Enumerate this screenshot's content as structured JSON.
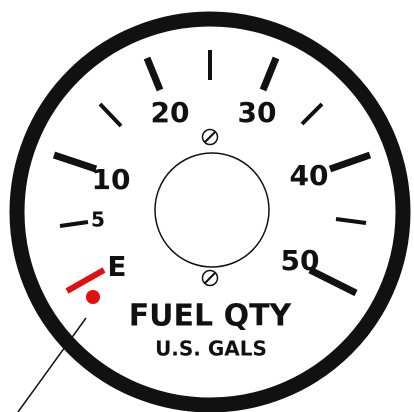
{
  "dial": {
    "scale_labels": [
      "E",
      "5",
      "10",
      "20",
      "30",
      "40",
      "50"
    ],
    "title": "FUEL QTY",
    "unit": "U.S. GALS"
  }
}
